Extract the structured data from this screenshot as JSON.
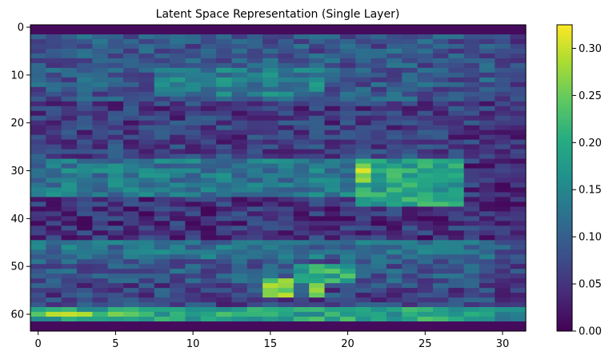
{
  "chart_data": {
    "type": "heatmap",
    "title": "Latent Space Representation (Single Layer)",
    "xlabel": "",
    "ylabel": "",
    "columns": 32,
    "rows": 64,
    "xlim": [
      -0.5,
      31.5
    ],
    "ylim": [
      63.5,
      -0.5
    ],
    "x_ticks": [
      0,
      5,
      10,
      15,
      20,
      25,
      30
    ],
    "y_ticks": [
      0,
      10,
      20,
      30,
      40,
      50,
      60
    ],
    "colormap": "viridis",
    "colorbar": {
      "vmin": 0.0,
      "vmax": 0.325,
      "ticks": [
        "0.00",
        "0.05",
        "0.10",
        "0.15",
        "0.20",
        "0.25",
        "0.30"
      ],
      "tick_values": [
        0.0,
        0.05,
        0.1,
        0.15,
        0.2,
        0.25,
        0.3
      ]
    },
    "grid": false,
    "bands": [
      {
        "rows": [
          0,
          1
        ],
        "cols": [
          0,
          31
        ],
        "value": 0.01
      },
      {
        "rows": [
          2,
          6
        ],
        "cols": [
          0,
          31
        ],
        "value": 0.09
      },
      {
        "rows": [
          7,
          15
        ],
        "cols": [
          0,
          31
        ],
        "value": 0.09
      },
      {
        "rows": [
          9,
          14
        ],
        "cols": [
          8,
          18
        ],
        "value": 0.14
      },
      {
        "rows": [
          16,
          24
        ],
        "cols": [
          0,
          31
        ],
        "value": 0.06
      },
      {
        "rows": [
          25,
          27
        ],
        "cols": [
          0,
          31
        ],
        "value": 0.07
      },
      {
        "rows": [
          28,
          35
        ],
        "cols": [
          0,
          20
        ],
        "value": 0.13
      },
      {
        "rows": [
          28,
          37
        ],
        "cols": [
          21,
          27
        ],
        "value": 0.19
      },
      {
        "rows": [
          29,
          32
        ],
        "cols": [
          21,
          21
        ],
        "value": 0.3
      },
      {
        "rows": [
          38,
          44
        ],
        "cols": [
          0,
          31
        ],
        "value": 0.05
      },
      {
        "rows": [
          45,
          48
        ],
        "cols": [
          0,
          31
        ],
        "value": 0.12
      },
      {
        "rows": [
          49,
          53
        ],
        "cols": [
          0,
          31
        ],
        "value": 0.09
      },
      {
        "rows": [
          50,
          53
        ],
        "cols": [
          17,
          20
        ],
        "value": 0.2
      },
      {
        "rows": [
          54,
          58
        ],
        "cols": [
          0,
          31
        ],
        "value": 0.07
      },
      {
        "rows": [
          53,
          56
        ],
        "cols": [
          15,
          16
        ],
        "value": 0.26
      },
      {
        "rows": [
          54,
          56
        ],
        "cols": [
          18,
          18
        ],
        "value": 0.29
      },
      {
        "rows": [
          59,
          61
        ],
        "cols": [
          0,
          31
        ],
        "value": 0.19
      },
      {
        "rows": [
          60,
          60
        ],
        "cols": [
          0,
          6
        ],
        "value": 0.26
      },
      {
        "rows": [
          62,
          63
        ],
        "cols": [
          0,
          31
        ],
        "value": 0.01
      }
    ]
  }
}
